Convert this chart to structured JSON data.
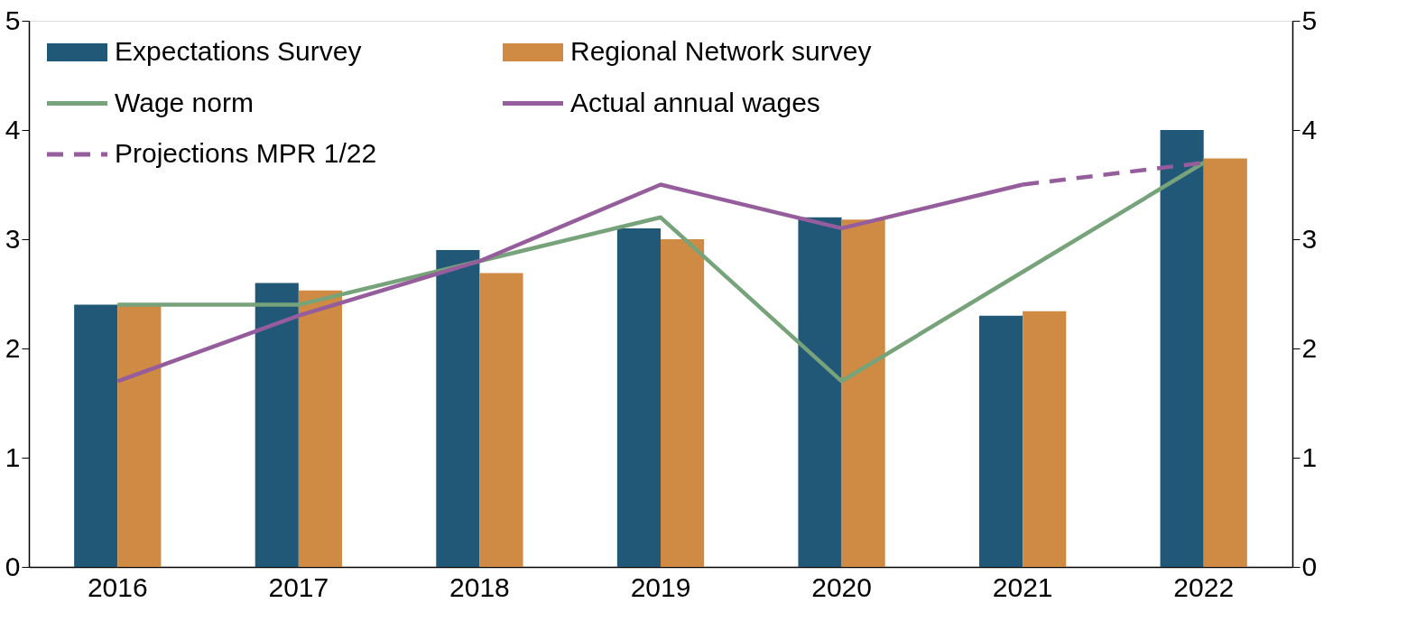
{
  "chart_data": {
    "type": "bar",
    "categories": [
      "2016",
      "2017",
      "2018",
      "2019",
      "2020",
      "2021",
      "2022"
    ],
    "series": [
      {
        "name": "Expectations Survey",
        "color": "#215878",
        "values": [
          2.4,
          2.6,
          2.9,
          3.1,
          3.2,
          2.3,
          4.0
        ]
      },
      {
        "name": "Regional Network survey",
        "color": "#cf8b43",
        "values": [
          2.4,
          2.53,
          2.69,
          3.0,
          3.18,
          2.34,
          3.74
        ]
      },
      {
        "name": "Wage norm",
        "type": "line",
        "color": "#77a37a",
        "line_style": "solid",
        "values": [
          2.4,
          2.4,
          2.8,
          3.2,
          1.7,
          2.7,
          3.7
        ]
      },
      {
        "name": "Actual annual wages",
        "type": "line",
        "color": "#955d9b",
        "line_style": "solid",
        "values": [
          1.7,
          2.3,
          2.8,
          3.5,
          3.1,
          3.5,
          null
        ]
      },
      {
        "name": "Projections MPR 1/22",
        "type": "line",
        "color": "#955d9b",
        "line_style": "dashed",
        "values": [
          null,
          null,
          null,
          null,
          null,
          3.5,
          3.7
        ]
      }
    ],
    "ylim": [
      0,
      5
    ],
    "yticks": [
      0,
      1,
      2,
      3,
      4,
      5
    ],
    "y2lim": [
      0,
      5
    ],
    "y2ticks": [
      0,
      1,
      2,
      3,
      4,
      5
    ],
    "grid": false,
    "legend": "top left",
    "marker": "none"
  }
}
